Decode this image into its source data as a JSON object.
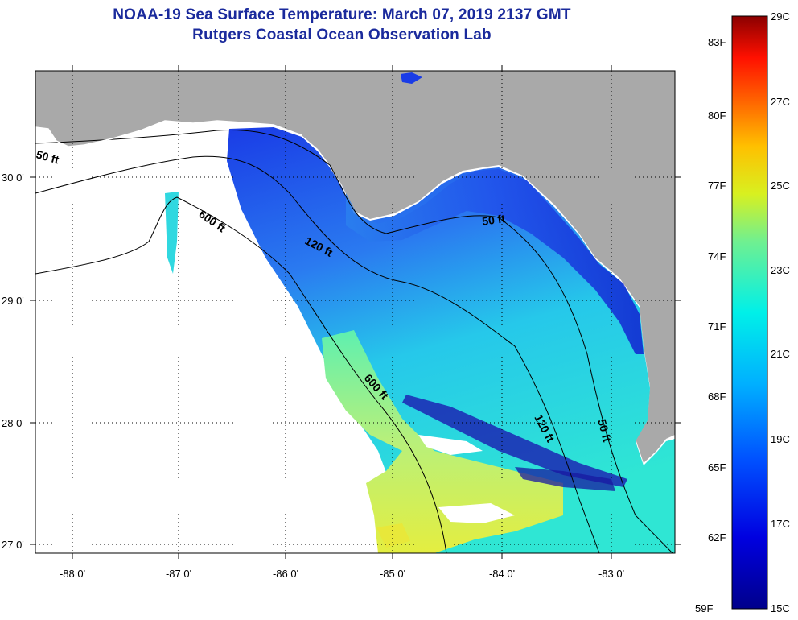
{
  "header": {
    "title": "NOAA-19 Sea Surface Temperature:  March 07, 2019 2137 GMT",
    "subtitle": "Rutgers Coastal Ocean Observation Lab"
  },
  "map": {
    "lon_ticks": [
      "-88 0'",
      "-87 0'",
      "-86 0'",
      "-85 0'",
      "-84 0'",
      "-83 0'"
    ],
    "lat_ticks": [
      "30 0'",
      "29 0'",
      "28 0'",
      "27 0'"
    ],
    "contour_labels": [
      "50 ft",
      "600 ft",
      "120 ft",
      "50 ft",
      "600 ft",
      "120 ft",
      "50 ft"
    ],
    "colors": {
      "land": "#a9a9a9",
      "no_data": "#ffffff",
      "water_cold": "#1632e0",
      "water_warm": "#d8ee3a"
    }
  },
  "colorbar": {
    "fahrenheit": [
      "83F",
      "80F",
      "77F",
      "74F",
      "71F",
      "68F",
      "65F",
      "62F",
      "59F"
    ],
    "celsius": [
      "29C",
      "27C",
      "25C",
      "23C",
      "21C",
      "19C",
      "17C",
      "15C"
    ]
  }
}
